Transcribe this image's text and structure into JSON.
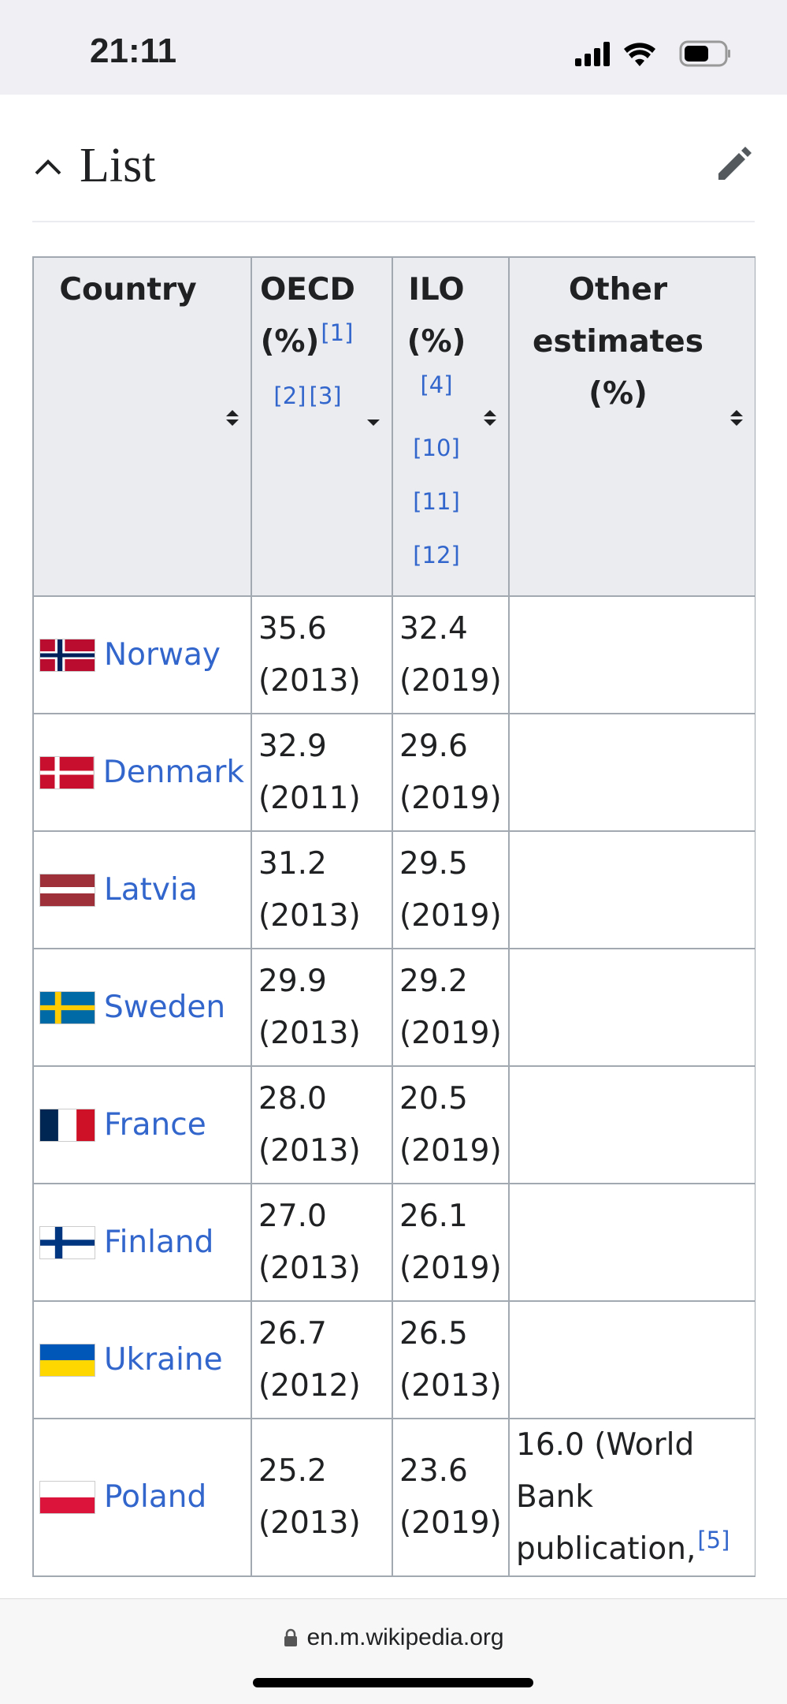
{
  "status_bar": {
    "time": "21:11"
  },
  "section": {
    "title": "List"
  },
  "table": {
    "headers": [
      {
        "text": "Country"
      },
      {
        "text": "OECD (%)",
        "refs": [
          "[1]",
          "[2]",
          "[3]"
        ]
      },
      {
        "text": "ILO (%)",
        "refs": [
          "[4]",
          "[10]",
          "[11]",
          "[12]"
        ]
      },
      {
        "text": "Other estimates (%)"
      }
    ],
    "rows": [
      {
        "country": "Norway",
        "oecd": "35.6 (2013)",
        "ilo": "32.4 (2019)"
      },
      {
        "country": "Denmark",
        "oecd": "32.9 (2011)",
        "ilo": "29.6 (2019)"
      },
      {
        "country": "Latvia",
        "oecd": "31.2 (2013)",
        "ilo": "29.5 (2019)"
      },
      {
        "country": "Sweden",
        "oecd": "29.9 (2013)",
        "ilo": "29.2 (2019)"
      },
      {
        "country": "France",
        "oecd": "28.0 (2013)",
        "ilo": "20.5 (2019)"
      },
      {
        "country": "Finland",
        "oecd": "27.0 (2013)",
        "ilo": "26.1 (2019)"
      },
      {
        "country": "Ukraine",
        "oecd": "26.7 (2012)",
        "ilo": "26.5 (2013)"
      },
      {
        "country": "Poland",
        "oecd": "25.2 (2013)",
        "ilo": "23.6 (2019)",
        "other": "16.0 (World Bank publication,",
        "other_refs": [
          "[5]"
        ]
      }
    ]
  },
  "footer": {
    "url": "en.m.wikipedia.org"
  }
}
